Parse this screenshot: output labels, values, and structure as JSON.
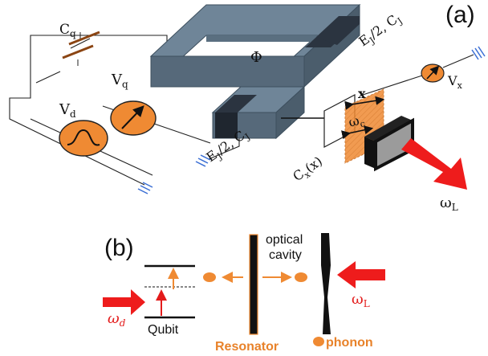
{
  "panel_a": {
    "label": "(a)",
    "cq": "C",
    "cq_sub": "q",
    "vq": "V",
    "vq_sub": "q",
    "vd": "V",
    "vd_sub": "d",
    "flux": "Φ",
    "junction_top": "E",
    "junction_top_rest": "/2, C",
    "junction_bottom": "E",
    "junction_bottom_rest": "/2, C",
    "junction_sub": "J",
    "cx": "C",
    "cx_sub": "x",
    "cx_rest": "(x)",
    "x": "x",
    "omega_c": "ω",
    "omega_c_sub": "c",
    "vx": "V",
    "vx_sub": "x",
    "omega_l": "ω",
    "omega_l_sub": "L"
  },
  "panel_b": {
    "label": "(b)",
    "optical": "optical",
    "cavity": "cavity",
    "omega_d": "ω",
    "omega_d_sub": "d",
    "qubit": "Qubit",
    "resonator": "Resonator",
    "phonon": "phonon",
    "omega_l": "ω",
    "omega_l_sub": "L"
  },
  "colors": {
    "orange": "#ef8a33",
    "red": "#e31b1b",
    "slate": "#6f8598",
    "slate_dark": "#4f6577",
    "junction": "#2b3440",
    "ground": "#3b6fd4"
  }
}
